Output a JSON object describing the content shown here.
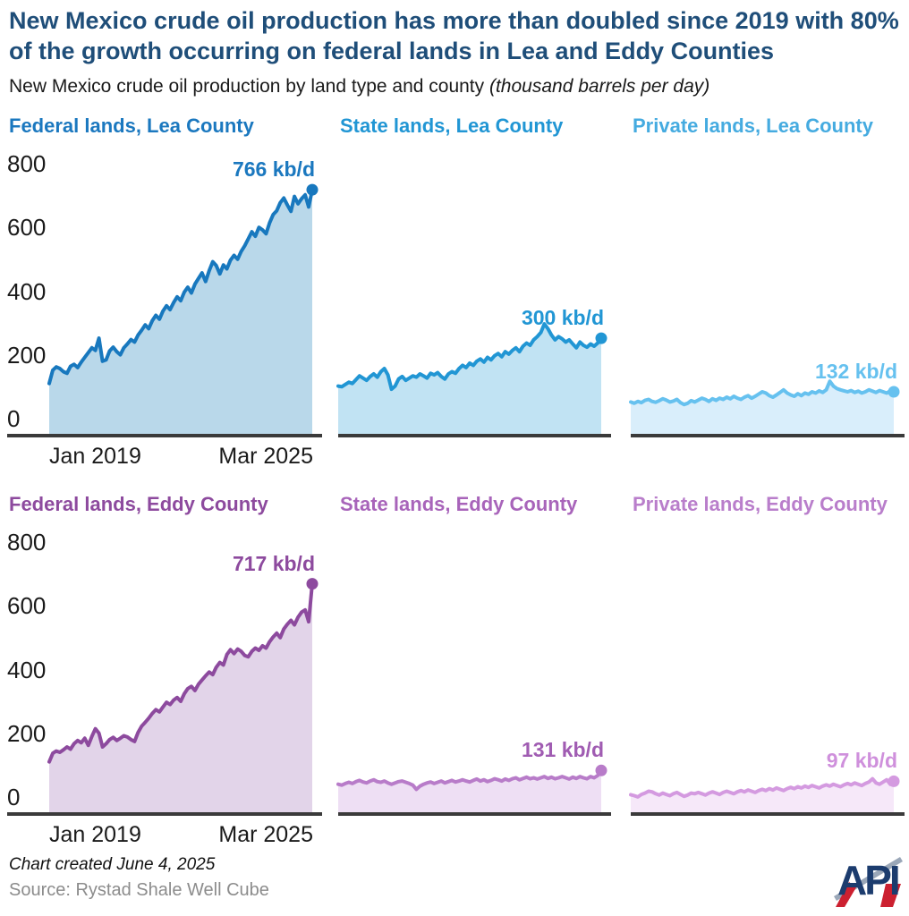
{
  "header": {
    "title": "New Mexico crude oil production has more than doubled since 2019 with 80% of the growth occurring on federal lands in Lea and Eddy Counties",
    "subtitle": "New Mexico crude oil production by land type and county",
    "subtitle_units": "(thousand barrels per day)"
  },
  "footer": {
    "created_note": "Chart created June 4, 2025",
    "source": "Source: Rystad Shale Well Cube",
    "logo": "API"
  },
  "colors": {
    "title": "#1f4e79",
    "text": "#1a1a1a",
    "muted": "#8c8c8c",
    "axis": "#3a3a3a",
    "logo_navy": "#1c3c6e",
    "logo_red": "#cc2030",
    "logo_silver": "#9aa7b8"
  },
  "chart_data": {
    "type": "area",
    "layout": "small-multiples 2 rows x 3 cols, shared axes",
    "title": "New Mexico crude oil production by land type and county",
    "ylabel": "thousand barrels per day",
    "ylim": [
      0,
      800
    ],
    "yticks": [
      800,
      600,
      400,
      200,
      0
    ],
    "grid": false,
    "x_start_label": "Jan 2019",
    "x_end_label": "Mar 2025",
    "x_unit": "month",
    "n_points": 75,
    "series": [
      {
        "id": "federal-lea",
        "label": "Federal lands, Lea County",
        "annotation": "766 kb/d",
        "final_value": 766,
        "label_color": "#1b78bf",
        "line_color": "#1878be",
        "fill_color": "#b9d8ea",
        "annotation_color": "#1b78bf",
        "values": [
          158,
          200,
          210,
          205,
          195,
          190,
          212,
          218,
          208,
          225,
          240,
          255,
          270,
          262,
          300,
          228,
          232,
          260,
          272,
          258,
          248,
          270,
          282,
          296,
          288,
          310,
          325,
          342,
          330,
          355,
          372,
          360,
          385,
          402,
          390,
          412,
          430,
          418,
          445,
          460,
          442,
          470,
          488,
          505,
          478,
          512,
          540,
          528,
          502,
          530,
          518,
          545,
          560,
          548,
          572,
          590,
          612,
          634,
          620,
          648,
          640,
          628,
          662,
          688,
          700,
          725,
          740,
          718,
          698,
          745,
          722,
          738,
          750,
          712,
          766
        ]
      },
      {
        "id": "state-lea",
        "label": "State lands, Lea County",
        "annotation": "300 kb/d",
        "final_value": 300,
        "label_color": "#2196d4",
        "line_color": "#2196d4",
        "fill_color": "#c1e3f3",
        "annotation_color": "#2196d4",
        "values": [
          150,
          148,
          155,
          162,
          158,
          170,
          182,
          175,
          168,
          180,
          188,
          178,
          195,
          205,
          185,
          140,
          150,
          172,
          180,
          168,
          175,
          182,
          178,
          188,
          182,
          175,
          190,
          185,
          192,
          180,
          172,
          188,
          195,
          190,
          205,
          215,
          208,
          222,
          215,
          228,
          235,
          225,
          240,
          232,
          245,
          252,
          242,
          258,
          250,
          262,
          270,
          258,
          275,
          285,
          278,
          295,
          305,
          318,
          345,
          330,
          310,
          295,
          305,
          298,
          288,
          295,
          282,
          270,
          288,
          278,
          272,
          282,
          275,
          285,
          300
        ]
      },
      {
        "id": "private-lea",
        "label": "Private lands, Lea County",
        "annotation": "132 kb/d",
        "final_value": 132,
        "label_color": "#45abe0",
        "line_color": "#66c1ef",
        "fill_color": "#d9eefb",
        "annotation_color": "#66c1ef",
        "values": [
          100,
          96,
          102,
          98,
          105,
          108,
          102,
          99,
          104,
          110,
          106,
          100,
          103,
          108,
          98,
          92,
          96,
          104,
          100,
          106,
          112,
          108,
          102,
          110,
          105,
          112,
          108,
          115,
          110,
          118,
          112,
          108,
          115,
          120,
          112,
          118,
          125,
          132,
          128,
          120,
          115,
          122,
          130,
          138,
          128,
          122,
          118,
          126,
          120,
          128,
          124,
          132,
          128,
          135,
          130,
          138,
          165,
          150,
          142,
          138,
          135,
          132,
          136,
          130,
          134,
          128,
          132,
          138,
          134,
          130,
          136,
          132,
          128,
          135,
          132
        ]
      },
      {
        "id": "federal-eddy",
        "label": "Federal lands, Eddy County",
        "annotation": "717 kb/d",
        "final_value": 717,
        "label_color": "#8d4a9e",
        "line_color": "#8d4a9e",
        "fill_color": "#e2d4e9",
        "annotation_color": "#8d4a9e",
        "values": [
          158,
          185,
          192,
          188,
          196,
          205,
          198,
          215,
          225,
          218,
          232,
          210,
          238,
          262,
          248,
          205,
          215,
          228,
          235,
          225,
          232,
          240,
          236,
          228,
          222,
          250,
          270,
          282,
          295,
          310,
          322,
          315,
          330,
          345,
          338,
          352,
          360,
          348,
          372,
          388,
          395,
          382,
          402,
          415,
          428,
          440,
          432,
          455,
          470,
          462,
          495,
          510,
          498,
          512,
          505,
          492,
          488,
          505,
          515,
          508,
          522,
          515,
          535,
          550,
          562,
          548,
          575,
          590,
          602,
          588,
          612,
          628,
          635,
          598,
          717
        ]
      },
      {
        "id": "state-eddy",
        "label": "State lands, Eddy County",
        "annotation": "131 kb/d",
        "final_value": 131,
        "label_color": "#a864ba",
        "line_color": "#b87cc9",
        "fill_color": "#eedff4",
        "annotation_color": "#a05cb2",
        "values": [
          88,
          85,
          90,
          94,
          90,
          96,
          100,
          95,
          92,
          98,
          102,
          96,
          94,
          98,
          92,
          88,
          92,
          96,
          98,
          94,
          90,
          85,
          72,
          82,
          88,
          92,
          95,
          90,
          94,
          98,
          92,
          96,
          100,
          95,
          98,
          102,
          98,
          95,
          100,
          104,
          98,
          102,
          96,
          100,
          105,
          102,
          98,
          104,
          100,
          105,
          108,
          102,
          106,
          110,
          105,
          108,
          104,
          108,
          112,
          106,
          110,
          105,
          108,
          112,
          108,
          104,
          110,
          106,
          112,
          108,
          105,
          112,
          108,
          115,
          131
        ]
      },
      {
        "id": "private-eddy",
        "label": "Private lands, Eddy County",
        "annotation": "97 kb/d",
        "final_value": 97,
        "label_color": "#b97ecb",
        "line_color": "#d49ae0",
        "fill_color": "#f6e8f9",
        "annotation_color": "#cf90dc",
        "values": [
          55,
          52,
          48,
          56,
          60,
          66,
          64,
          58,
          54,
          60,
          56,
          52,
          58,
          62,
          56,
          50,
          54,
          60,
          58,
          62,
          58,
          54,
          60,
          64,
          60,
          56,
          62,
          66,
          62,
          58,
          64,
          68,
          64,
          70,
          66,
          62,
          68,
          72,
          68,
          74,
          70,
          76,
          72,
          68,
          74,
          78,
          74,
          80,
          76,
          82,
          78,
          84,
          80,
          76,
          82,
          86,
          82,
          88,
          84,
          80,
          86,
          90,
          86,
          92,
          88,
          84,
          90,
          95,
          105,
          92,
          88,
          95,
          102,
          88,
          97
        ]
      }
    ]
  }
}
